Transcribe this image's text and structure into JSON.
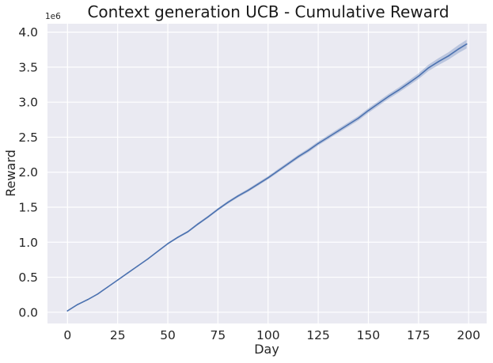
{
  "chart_data": {
    "type": "line",
    "title": "Context generation UCB - Cumulative Reward",
    "xlabel": "Day",
    "ylabel": "Reward",
    "y_offset_label": "1e6",
    "xlim": [
      -10,
      209
    ],
    "ylim": [
      -0.16,
      4.12
    ],
    "x_ticks": [
      0,
      25,
      50,
      75,
      100,
      125,
      150,
      175,
      200
    ],
    "x_tick_labels": [
      "0",
      "25",
      "50",
      "75",
      "100",
      "125",
      "150",
      "175",
      "200"
    ],
    "y_ticks": [
      0.0,
      0.5,
      1.0,
      1.5,
      2.0,
      2.5,
      3.0,
      3.5,
      4.0
    ],
    "y_tick_labels": [
      "0.0",
      "0.5",
      "1.0",
      "1.5",
      "2.0",
      "2.5",
      "3.0",
      "3.5",
      "4.0"
    ],
    "grid": true,
    "legend": "none",
    "colors": {
      "background": "#eaeaf2",
      "grid": "#ffffff",
      "line": "#4c72b0",
      "band": "#4c72b0"
    },
    "series": [
      {
        "x": [
          0,
          5,
          10,
          15,
          20,
          25,
          30,
          35,
          40,
          45,
          50,
          55,
          60,
          65,
          70,
          75,
          80,
          85,
          90,
          95,
          100,
          105,
          110,
          115,
          120,
          125,
          130,
          135,
          140,
          145,
          150,
          155,
          160,
          165,
          170,
          175,
          180,
          185,
          190,
          195,
          199
        ],
        "y": [
          0.02,
          0.11,
          0.18,
          0.26,
          0.36,
          0.46,
          0.56,
          0.66,
          0.76,
          0.87,
          0.98,
          1.07,
          1.15,
          1.26,
          1.36,
          1.47,
          1.57,
          1.66,
          1.74,
          1.83,
          1.92,
          2.02,
          2.12,
          2.22,
          2.31,
          2.41,
          2.5,
          2.59,
          2.68,
          2.77,
          2.88,
          2.98,
          3.08,
          3.17,
          3.27,
          3.37,
          3.49,
          3.58,
          3.66,
          3.76,
          3.83
        ],
        "ci_half_width": [
          0.002,
          0.003,
          0.004,
          0.005,
          0.006,
          0.007,
          0.008,
          0.009,
          0.01,
          0.011,
          0.012,
          0.013,
          0.014,
          0.016,
          0.017,
          0.018,
          0.019,
          0.02,
          0.021,
          0.022,
          0.023,
          0.024,
          0.025,
          0.026,
          0.027,
          0.028,
          0.029,
          0.03,
          0.031,
          0.032,
          0.033,
          0.034,
          0.035,
          0.036,
          0.038,
          0.041,
          0.045,
          0.049,
          0.053,
          0.058,
          0.062
        ]
      }
    ]
  }
}
